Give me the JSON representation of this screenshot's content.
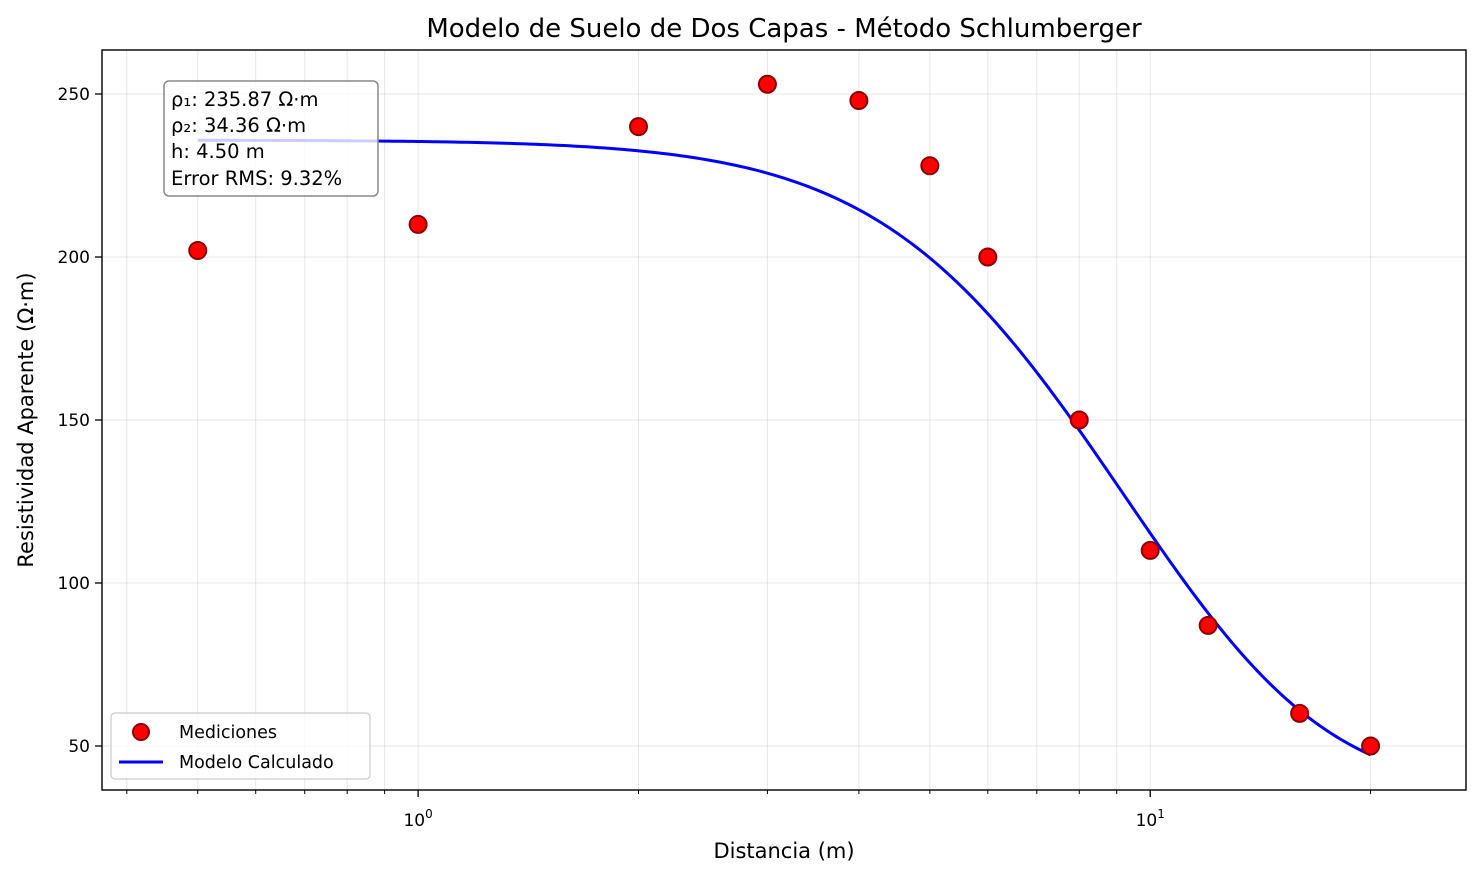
{
  "chart_data": {
    "type": "scatter",
    "title": "Modelo de Suelo de Dos Capas - Método Schlumberger",
    "xlabel": "Distancia (m)",
    "ylabel": "Resistividad Aparente (Ω·m)",
    "xscale": "log",
    "xlim": [
      0.37,
      27
    ],
    "ylim": [
      36.5,
      263.5
    ],
    "grid": true,
    "x_tick_labels": [
      {
        "value": 1,
        "base": "10",
        "exp": "0"
      },
      {
        "value": 10,
        "base": "10",
        "exp": "1"
      }
    ],
    "y_ticks": [
      50,
      100,
      150,
      200,
      250
    ],
    "series": [
      {
        "name": "Mediciones",
        "kind": "markers",
        "color": "#ff0000",
        "edge_color": "#8b0000",
        "x": [
          0.5,
          1,
          2,
          3,
          4,
          5,
          6,
          8,
          10,
          12,
          16,
          20
        ],
        "y": [
          202,
          210,
          240,
          253,
          248,
          228,
          200,
          150,
          110,
          87,
          60,
          50
        ]
      },
      {
        "name": "Modelo Calculado",
        "kind": "line",
        "color": "#0000ff",
        "model": {
          "rho1": 235.87,
          "rho2": 34.36,
          "h": 4.5,
          "x_min": 0.5,
          "x_max": 20
        }
      }
    ],
    "legend": {
      "position": "lower-left",
      "entries": [
        "Mediciones",
        "Modelo Calculado"
      ]
    },
    "annotation": {
      "position": "top-left",
      "lines": [
        "ρ₁: 235.87 Ω·m",
        "ρ₂: 34.36 Ω·m",
        "h: 4.50 m",
        "Error RMS: 9.32%"
      ]
    }
  }
}
